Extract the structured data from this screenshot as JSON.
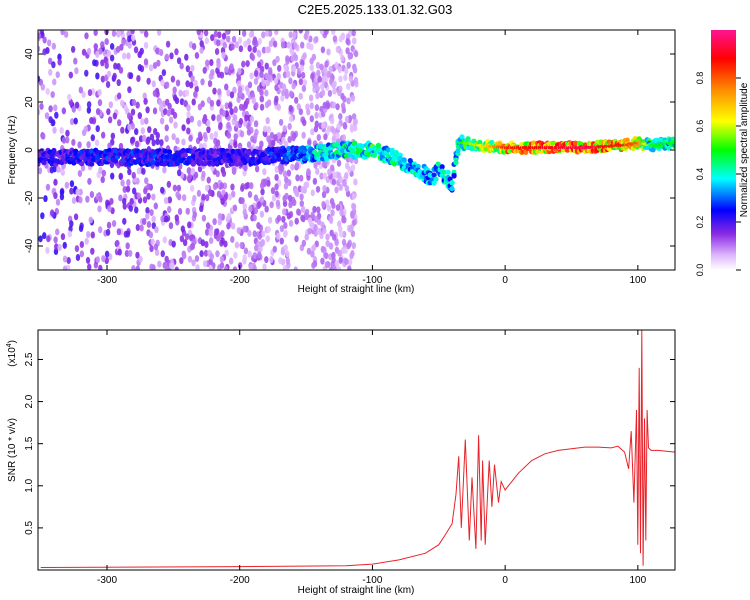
{
  "title": "C2E5.2025.133.01.32.G03",
  "chart_data": [
    {
      "type": "heatmap",
      "name": "spectrogram",
      "xlabel": "Height of straight line (km)",
      "ylabel": "Frequency (Hz)",
      "xlim": [
        -352,
        128
      ],
      "ylim": [
        -50,
        50
      ],
      "xticks": [
        -300,
        -200,
        -100,
        0,
        100
      ],
      "yticks": [
        -40,
        -20,
        0,
        20,
        40
      ],
      "colorbar": {
        "label": "Normalized spectral amplitude",
        "range": [
          0,
          1
        ],
        "ticks": [
          0.0,
          0.2,
          0.4,
          0.6,
          0.8
        ]
      },
      "ridge": {
        "x": [
          -350,
          -300,
          -250,
          -200,
          -160,
          -140,
          -120,
          -100,
          -90,
          -80,
          -70,
          -60,
          -55,
          -50,
          -45,
          -40,
          -35,
          -30,
          -20,
          0,
          30,
          60,
          90,
          100,
          110,
          128
        ],
        "y": [
          -3,
          -3,
          -3,
          -3,
          -2,
          -1,
          0,
          0,
          -2,
          -4,
          -7,
          -10,
          -12,
          -8,
          -11,
          -14,
          3,
          3,
          2,
          1,
          1,
          1,
          2,
          3,
          2,
          3
        ],
        "amplitude": [
          0.25,
          0.3,
          0.3,
          0.25,
          0.35,
          0.45,
          0.5,
          0.55,
          0.5,
          0.5,
          0.45,
          0.45,
          0.4,
          0.45,
          0.45,
          0.4,
          0.45,
          0.55,
          0.6,
          0.85,
          0.9,
          0.95,
          0.85,
          0.8,
          0.5,
          0.5
        ]
      }
    },
    {
      "type": "line",
      "name": "snr",
      "xlabel": "Height of straight line (km)",
      "ylabel": "SNR (10 * v/v)",
      "scale_note": "(x10",
      "scale_exp": "4",
      "xlim": [
        -352,
        128
      ],
      "ylim": [
        0,
        2.85
      ],
      "xticks": [
        -300,
        -200,
        -100,
        0,
        100
      ],
      "yticks": [
        0.5,
        1.0,
        1.5,
        2.0,
        2.5
      ],
      "color": "#e8232a",
      "x": [
        -350,
        -200,
        -120,
        -100,
        -80,
        -60,
        -50,
        -45,
        -40,
        -37,
        -35,
        -33,
        -30,
        -27,
        -25,
        -22,
        -20,
        -18,
        -17,
        -15,
        -12,
        -10,
        -8,
        -5,
        -3,
        0,
        5,
        10,
        20,
        30,
        40,
        50,
        60,
        70,
        80,
        85,
        90,
        93,
        95,
        97,
        99,
        100,
        101,
        102,
        103,
        104,
        105,
        106,
        107,
        108,
        110,
        115,
        128
      ],
      "y": [
        0.03,
        0.04,
        0.05,
        0.07,
        0.12,
        0.2,
        0.3,
        0.42,
        0.55,
        0.9,
        1.35,
        0.5,
        1.55,
        0.35,
        1.1,
        0.25,
        1.6,
        0.35,
        1.3,
        0.3,
        1.3,
        0.75,
        1.25,
        0.8,
        1.05,
        0.95,
        1.05,
        1.15,
        1.3,
        1.38,
        1.42,
        1.44,
        1.46,
        1.46,
        1.45,
        1.47,
        1.4,
        1.2,
        1.65,
        0.8,
        1.9,
        0.3,
        2.4,
        0.2,
        2.85,
        0.05,
        1.8,
        0.35,
        1.9,
        1.45,
        1.42,
        1.42,
        1.4
      ]
    }
  ]
}
